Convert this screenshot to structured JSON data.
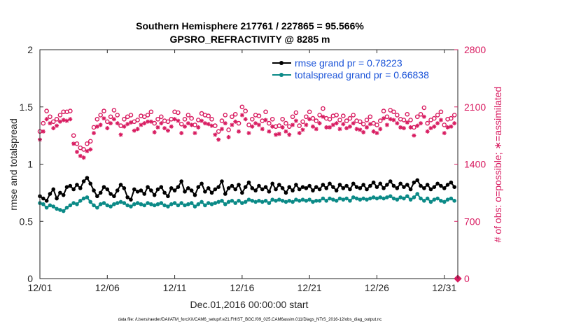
{
  "chart_data": {
    "type": "line",
    "title_line1": "Southern Hemisphere 217761 / 227865 = 95.566%",
    "title_line2": "GPSRO_REFRACTIVITY @ 8285 m",
    "xlabel": "Dec.01,2016 00:00:00 start",
    "ylabel": "rmse and totalspread",
    "y2label": "# of obs: o=possible; ∗=assimilated",
    "ylim": [
      0,
      2
    ],
    "y2lim": [
      0,
      2800
    ],
    "xlim": [
      0,
      31
    ],
    "xticks": [
      {
        "x": 0,
        "label": "12/01"
      },
      {
        "x": 5,
        "label": "12/06"
      },
      {
        "x": 10,
        "label": "12/11"
      },
      {
        "x": 15,
        "label": "12/16"
      },
      {
        "x": 20,
        "label": "12/21"
      },
      {
        "x": 25,
        "label": "12/26"
      },
      {
        "x": 30,
        "label": "12/31"
      }
    ],
    "yticks": [
      0,
      0.5,
      1,
      1.5,
      2
    ],
    "yticklabels": [
      "0",
      "0.5",
      "1",
      "1.5",
      "2"
    ],
    "y2ticks": [
      0,
      700,
      1400,
      2100,
      2800
    ],
    "y2ticklabels": [
      "0",
      "700",
      "1400",
      "2100",
      "2800"
    ],
    "colors": {
      "rmse": "#000000",
      "spread": "#0b8a87",
      "obs": "#d81b60",
      "legend_text": "#1a53d8"
    },
    "legend": [
      "rmse grand pr = 0.78223",
      "totalspread grand pr = 0.66838"
    ],
    "footnote": "data file: /Users/raeder/DAI/ATM_forcXX/CAM6_setup/f.e21.FHIST_BGC.f09_025.CAM6assim.011/Diags_NTrS_2016-12/obs_diag_output.nc",
    "x": [
      0,
      0.25,
      0.5,
      0.75,
      1,
      1.25,
      1.5,
      1.75,
      2,
      2.25,
      2.5,
      2.75,
      3,
      3.25,
      3.5,
      3.75,
      4,
      4.25,
      4.5,
      4.75,
      5,
      5.25,
      5.5,
      5.75,
      6,
      6.25,
      6.5,
      6.75,
      7,
      7.25,
      7.5,
      7.75,
      8,
      8.25,
      8.5,
      8.75,
      9,
      9.25,
      9.5,
      9.75,
      10,
      10.25,
      10.5,
      10.75,
      11,
      11.25,
      11.5,
      11.75,
      12,
      12.25,
      12.5,
      12.75,
      13,
      13.25,
      13.5,
      13.75,
      14,
      14.25,
      14.5,
      14.75,
      15,
      15.25,
      15.5,
      15.75,
      16,
      16.25,
      16.5,
      16.75,
      17,
      17.25,
      17.5,
      17.75,
      18,
      18.25,
      18.5,
      18.75,
      19,
      19.25,
      19.5,
      19.75,
      20,
      20.25,
      20.5,
      20.75,
      21,
      21.25,
      21.5,
      21.75,
      22,
      22.25,
      22.5,
      22.75,
      23,
      23.25,
      23.5,
      23.75,
      24,
      24.25,
      24.5,
      24.75,
      25,
      25.25,
      25.5,
      25.75,
      26,
      26.25,
      26.5,
      26.75,
      27,
      27.25,
      27.5,
      27.75,
      28,
      28.25,
      28.5,
      28.75,
      29,
      29.25,
      29.5,
      29.75,
      30,
      30.25,
      30.5,
      30.75
    ],
    "series": [
      {
        "name": "rmse",
        "values": [
          0.72,
          0.7,
          0.68,
          0.74,
          0.78,
          0.7,
          0.75,
          0.73,
          0.8,
          0.81,
          0.78,
          0.82,
          0.79,
          0.85,
          0.88,
          0.83,
          0.77,
          0.72,
          0.75,
          0.8,
          0.78,
          0.74,
          0.72,
          0.77,
          0.82,
          0.79,
          0.71,
          0.69,
          0.78,
          0.76,
          0.77,
          0.74,
          0.8,
          0.77,
          0.73,
          0.78,
          0.8,
          0.75,
          0.72,
          0.79,
          0.77,
          0.8,
          0.85,
          0.76,
          0.79,
          0.77,
          0.73,
          0.8,
          0.83,
          0.76,
          0.79,
          0.75,
          0.78,
          0.8,
          0.85,
          0.74,
          0.79,
          0.81,
          0.78,
          0.82,
          0.75,
          0.8,
          0.84,
          0.79,
          0.77,
          0.81,
          0.78,
          0.8,
          0.76,
          0.83,
          0.78,
          0.82,
          0.79,
          0.75,
          0.8,
          0.77,
          0.82,
          0.78,
          0.8,
          0.79,
          0.81,
          0.77,
          0.8,
          0.78,
          0.82,
          0.79,
          0.83,
          0.8,
          0.77,
          0.82,
          0.79,
          0.81,
          0.78,
          0.83,
          0.8,
          0.79,
          0.82,
          0.78,
          0.81,
          0.84,
          0.8,
          0.83,
          0.79,
          0.82,
          0.85,
          0.81,
          0.79,
          0.83,
          0.8,
          0.82,
          0.78,
          0.84,
          0.86,
          0.81,
          0.79,
          0.82,
          0.78,
          0.8,
          0.83,
          0.81,
          0.79,
          0.82,
          0.84,
          0.8
        ]
      },
      {
        "name": "totalspread",
        "values": [
          0.66,
          0.65,
          0.62,
          0.64,
          0.63,
          0.61,
          0.6,
          0.59,
          0.62,
          0.64,
          0.66,
          0.65,
          0.68,
          0.7,
          0.71,
          0.67,
          0.64,
          0.62,
          0.65,
          0.66,
          0.64,
          0.63,
          0.65,
          0.66,
          0.67,
          0.66,
          0.64,
          0.63,
          0.65,
          0.66,
          0.65,
          0.64,
          0.66,
          0.65,
          0.64,
          0.65,
          0.66,
          0.64,
          0.63,
          0.65,
          0.66,
          0.64,
          0.66,
          0.64,
          0.65,
          0.66,
          0.63,
          0.65,
          0.67,
          0.64,
          0.66,
          0.65,
          0.66,
          0.67,
          0.68,
          0.65,
          0.67,
          0.68,
          0.66,
          0.68,
          0.66,
          0.67,
          0.69,
          0.68,
          0.67,
          0.68,
          0.67,
          0.68,
          0.66,
          0.69,
          0.68,
          0.69,
          0.68,
          0.67,
          0.68,
          0.67,
          0.69,
          0.68,
          0.69,
          0.68,
          0.69,
          0.67,
          0.68,
          0.68,
          0.7,
          0.68,
          0.7,
          0.69,
          0.68,
          0.7,
          0.69,
          0.7,
          0.68,
          0.71,
          0.7,
          0.69,
          0.7,
          0.69,
          0.7,
          0.71,
          0.7,
          0.71,
          0.7,
          0.71,
          0.72,
          0.7,
          0.69,
          0.71,
          0.7,
          0.72,
          0.69,
          0.71,
          0.74,
          0.7,
          0.68,
          0.7,
          0.67,
          0.69,
          0.7,
          0.68,
          0.67,
          0.69,
          0.7,
          0.68
        ]
      },
      {
        "name": "obs_possible",
        "axis": "right",
        "values": [
          1800,
          1900,
          2050,
          1980,
          1920,
          1950,
          2000,
          2040,
          2040,
          2050,
          1750,
          1650,
          1600,
          1580,
          1650,
          1680,
          1850,
          1950,
          2000,
          2050,
          1920,
          1980,
          2060,
          2000,
          1870,
          1950,
          1980,
          2000,
          1920,
          1940,
          1990,
          1980,
          2000,
          2040,
          1900,
          1950,
          1980,
          1930,
          1920,
          1950,
          2040,
          2030,
          1890,
          1950,
          2000,
          1960,
          1880,
          1940,
          2020,
          2000,
          1990,
          1950,
          1870,
          1800,
          1930,
          2000,
          1820,
          1980,
          2010,
          1900,
          2100,
          2050,
          1880,
          1950,
          2000,
          1990,
          1930,
          2040,
          1900,
          1950,
          1860,
          1870,
          1950,
          1900,
          1860,
          1980,
          2030,
          1870,
          1920,
          1980,
          2040,
          1960,
          1930,
          2000,
          2080,
          1960,
          1950,
          1990,
          2000,
          1940,
          1990,
          1930,
          1960,
          2000,
          1930,
          1920,
          1890,
          1940,
          1980,
          1900,
          1880,
          1930,
          2050,
          1980,
          2060,
          2040,
          2000,
          1950,
          1940,
          2010,
          1940,
          1850,
          1980,
          2010,
          2090,
          1900,
          1940,
          1960,
          2000,
          2040,
          1880,
          1950,
          1960,
          2000
        ]
      },
      {
        "name": "obs_assimilated",
        "axis": "right",
        "values": [
          1700,
          1800,
          1950,
          1900,
          1840,
          1870,
          1920,
          1940,
          1930,
          1950,
          1650,
          1550,
          1500,
          1480,
          1560,
          1580,
          1780,
          1860,
          1880,
          1960,
          1840,
          1900,
          1950,
          1900,
          1760,
          1860,
          1890,
          1910,
          1810,
          1830,
          1880,
          1900,
          1920,
          1920,
          1790,
          1850,
          1900,
          1840,
          1810,
          1860,
          1950,
          1930,
          1780,
          1860,
          1900,
          1880,
          1780,
          1850,
          1930,
          1900,
          1890,
          1870,
          1760,
          1700,
          1830,
          1900,
          1730,
          1880,
          1920,
          1800,
          2000,
          1950,
          1780,
          1860,
          1900,
          1880,
          1830,
          1940,
          1800,
          1860,
          1760,
          1770,
          1850,
          1800,
          1760,
          1880,
          1930,
          1780,
          1820,
          1880,
          1950,
          1860,
          1830,
          1900,
          1980,
          1850,
          1850,
          1880,
          1900,
          1830,
          1890,
          1840,
          1860,
          1900,
          1830,
          1820,
          1790,
          1850,
          1890,
          1800,
          1780,
          1830,
          1960,
          1880,
          1950,
          1940,
          1900,
          1850,
          1840,
          1910,
          1850,
          1750,
          1870,
          1900,
          1980,
          1800,
          1840,
          1860,
          1900,
          1940,
          1780,
          1850,
          1860,
          1900
        ]
      }
    ]
  }
}
